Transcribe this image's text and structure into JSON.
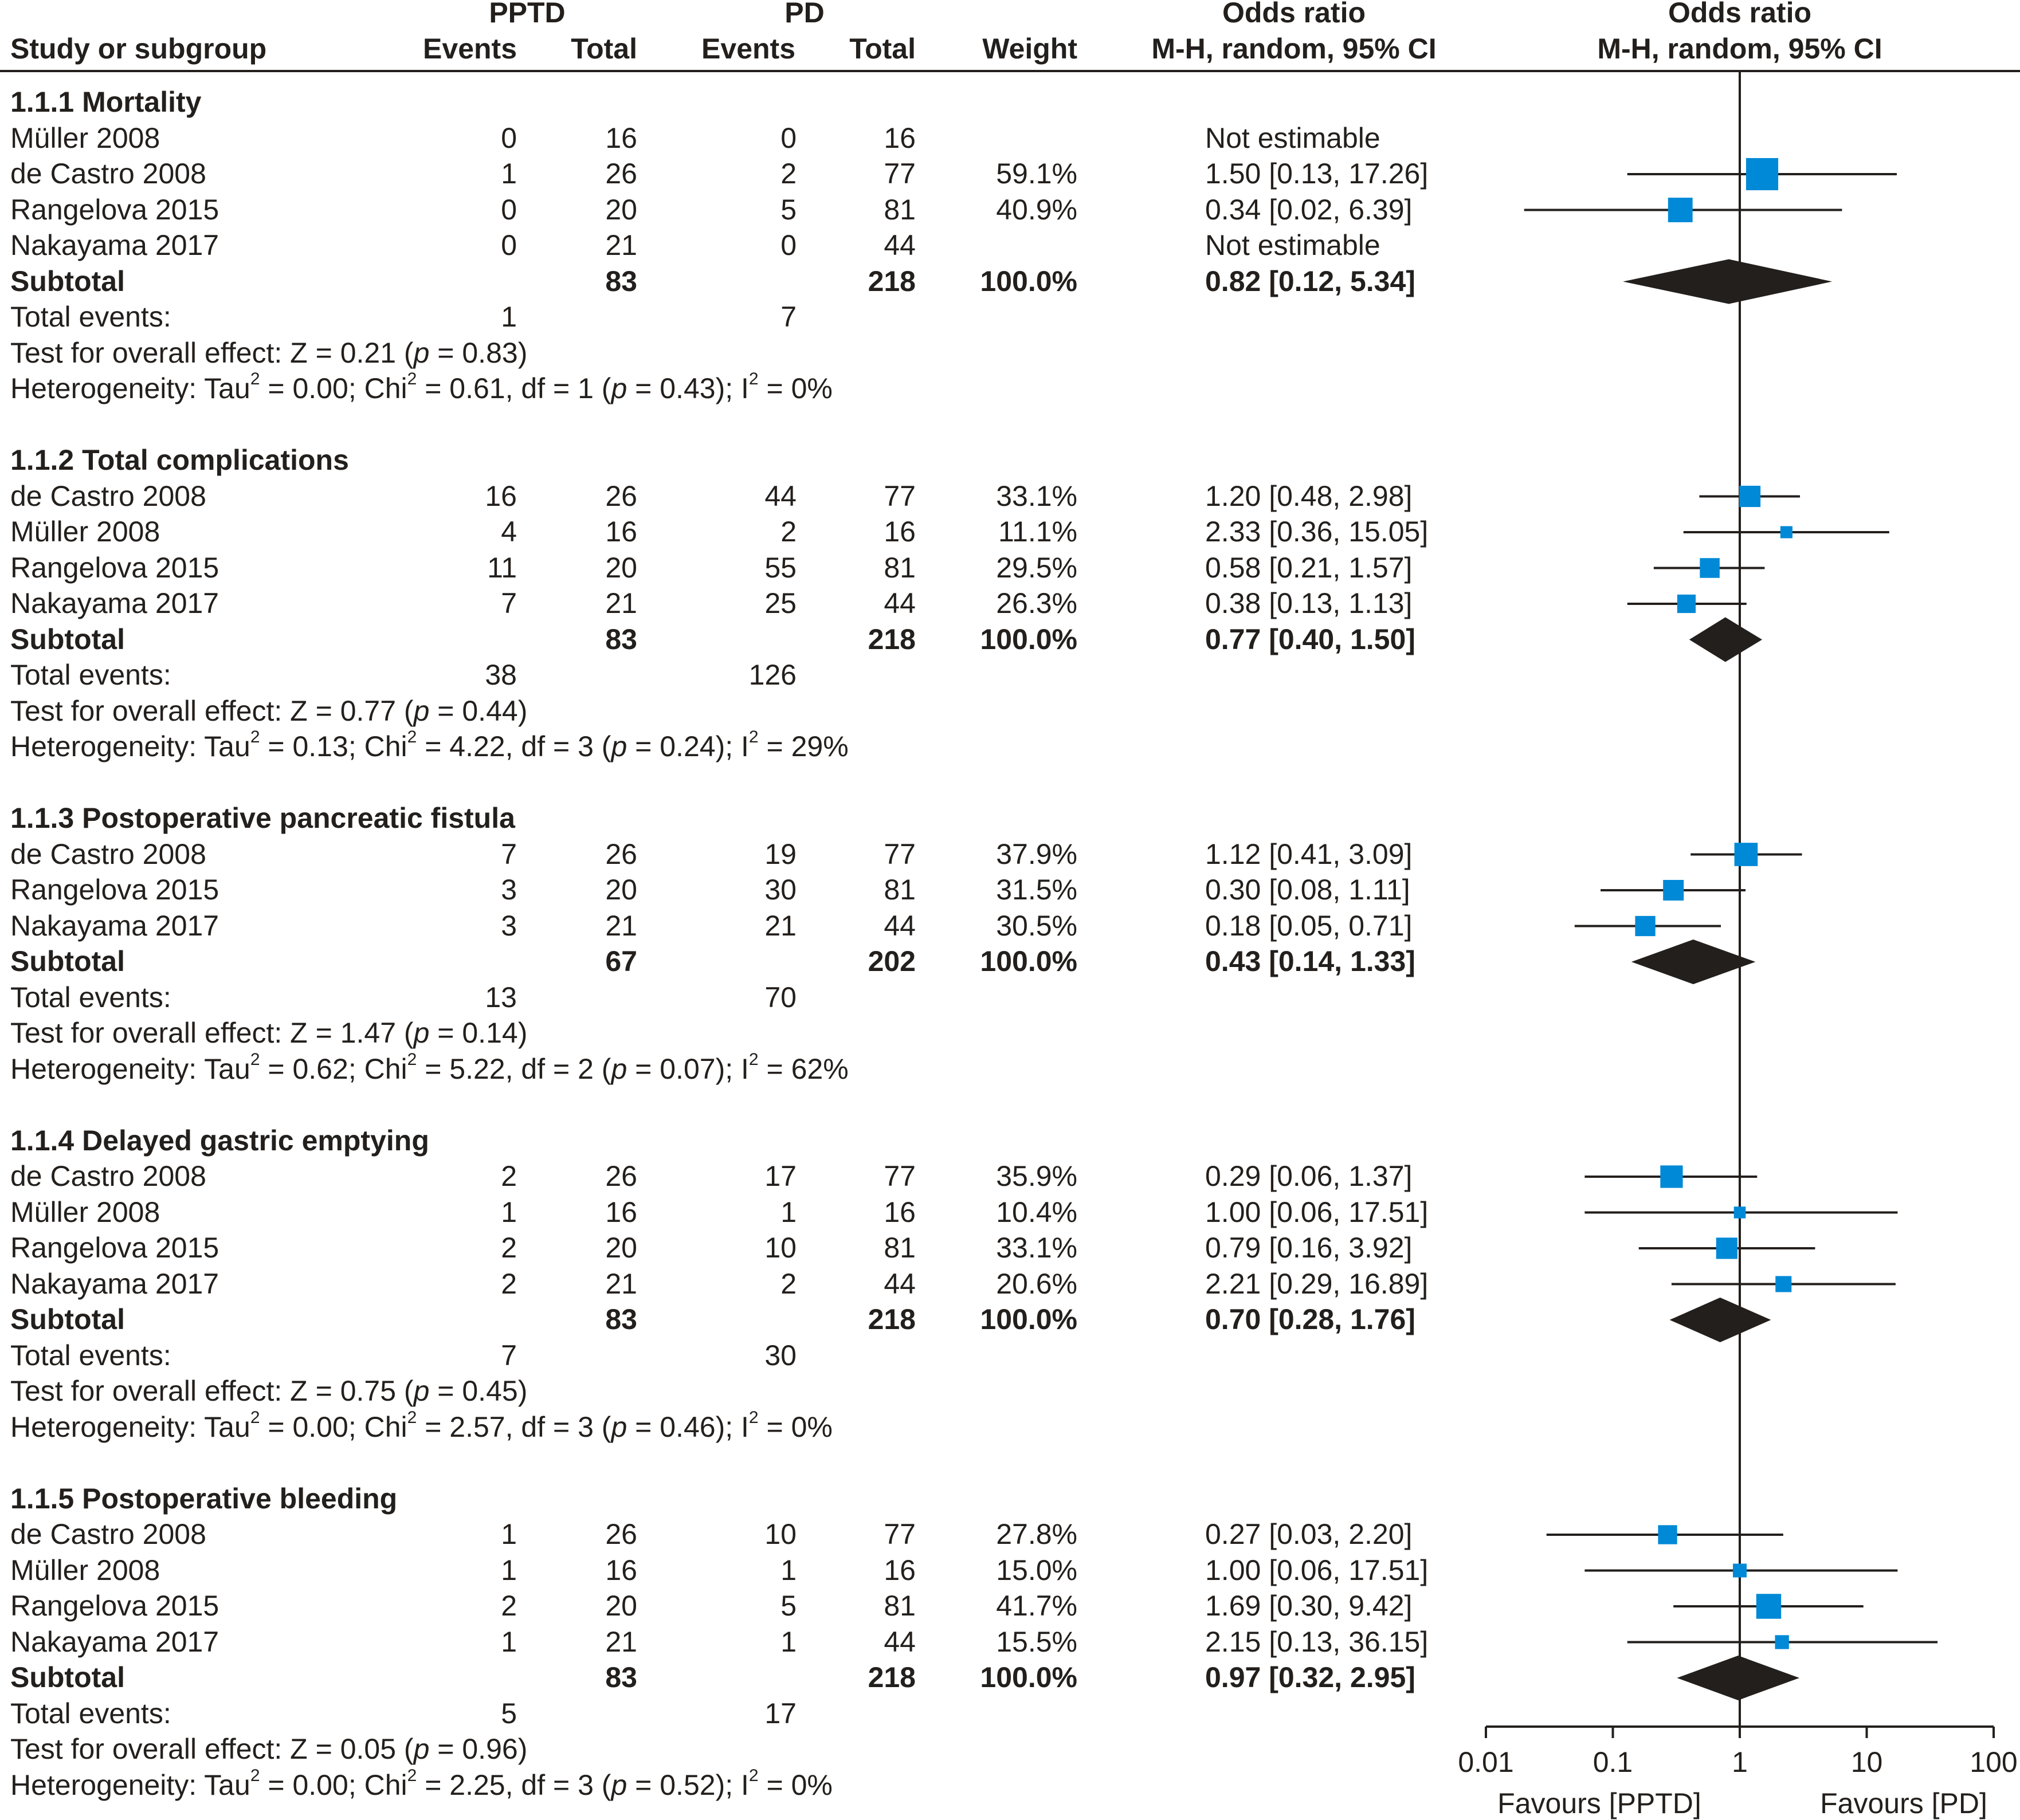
{
  "header": {
    "study_col": "Study or subgroup",
    "group1": "PPTD",
    "group2": "PD",
    "events": "Events",
    "total": "Total",
    "weight": "Weight",
    "or_title": "Odds ratio",
    "or_method": "M-H, random, 95% CI"
  },
  "colors": {
    "box": "#0089d6",
    "ink": "#231f1c"
  },
  "sections": [
    {
      "title": "1.1.1 Mortality",
      "studies": [
        {
          "name": "Müller 2008",
          "e1": "0",
          "n1": "16",
          "e2": "0",
          "n2": "16",
          "weight": "",
          "or_text": "Not estimable"
        },
        {
          "name": "de Castro 2008",
          "e1": "1",
          "n1": "26",
          "e2": "2",
          "n2": "77",
          "weight": "59.1%",
          "or_text": "1.50 [0.13, 17.26]"
        },
        {
          "name": "Rangelova 2015",
          "e1": "0",
          "n1": "20",
          "e2": "5",
          "n2": "81",
          "weight": "40.9%",
          "or_text": "0.34 [0.02, 6.39]"
        },
        {
          "name": "Nakayama 2017",
          "e1": "0",
          "n1": "21",
          "e2": "0",
          "n2": "44",
          "weight": "",
          "or_text": "Not estimable"
        }
      ],
      "subtotal": {
        "label": "Subtotal",
        "n1": "83",
        "n2": "218",
        "weight": "100.0%",
        "or_text": "0.82 [0.12, 5.34]"
      },
      "total_events": {
        "label": "Total events:",
        "e1": "1",
        "e2": "7"
      },
      "test": {
        "prefix": "Test for overall effect: Z = 0.21 (",
        "p": "p",
        "suffix": " = 0.83)"
      },
      "het": {
        "tau2": "0.00",
        "chi2": "0.61",
        "df": "1",
        "p": "0.43",
        "i2": "0%"
      }
    },
    {
      "title": "1.1.2 Total complications",
      "studies": [
        {
          "name": "de Castro 2008",
          "e1": "16",
          "n1": "26",
          "e2": "44",
          "n2": "77",
          "weight": "33.1%",
          "or_text": "1.20 [0.48, 2.98]"
        },
        {
          "name": "Müller 2008",
          "e1": "4",
          "n1": "16",
          "e2": "2",
          "n2": "16",
          "weight": "11.1%",
          "or_text": "2.33 [0.36, 15.05]"
        },
        {
          "name": "Rangelova 2015",
          "e1": "11",
          "n1": "20",
          "e2": "55",
          "n2": "81",
          "weight": "29.5%",
          "or_text": "0.58 [0.21, 1.57]"
        },
        {
          "name": "Nakayama 2017",
          "e1": "7",
          "n1": "21",
          "e2": "25",
          "n2": "44",
          "weight": "26.3%",
          "or_text": "0.38 [0.13, 1.13]"
        }
      ],
      "subtotal": {
        "label": "Subtotal",
        "n1": "83",
        "n2": "218",
        "weight": "100.0%",
        "or_text": "0.77 [0.40, 1.50]"
      },
      "total_events": {
        "label": "Total events:",
        "e1": "38",
        "e2": "126"
      },
      "test": {
        "prefix": "Test for overall effect: Z = 0.77 (",
        "p": "p",
        "suffix": " = 0.44)"
      },
      "het": {
        "tau2": "0.13",
        "chi2": "4.22",
        "df": "3",
        "p": "0.24",
        "i2": "29%"
      }
    },
    {
      "title": "1.1.3 Postoperative pancreatic fistula",
      "studies": [
        {
          "name": "de Castro 2008",
          "e1": "7",
          "n1": "26",
          "e2": "19",
          "n2": "77",
          "weight": "37.9%",
          "or_text": "1.12 [0.41, 3.09]"
        },
        {
          "name": "Rangelova 2015",
          "e1": "3",
          "n1": "20",
          "e2": "30",
          "n2": "81",
          "weight": "31.5%",
          "or_text": "0.30 [0.08, 1.11]"
        },
        {
          "name": "Nakayama 2017",
          "e1": "3",
          "n1": "21",
          "e2": "21",
          "n2": "44",
          "weight": "30.5%",
          "or_text": "0.18 [0.05, 0.71]"
        }
      ],
      "subtotal": {
        "label": "Subtotal",
        "n1": "67",
        "n2": "202",
        "weight": "100.0%",
        "or_text": "0.43 [0.14, 1.33]"
      },
      "total_events": {
        "label": "Total events:",
        "e1": "13",
        "e2": "70"
      },
      "test": {
        "prefix": "Test for overall effect: Z = 1.47 (",
        "p": "p",
        "suffix": " = 0.14)"
      },
      "het": {
        "tau2": "0.62",
        "chi2": "5.22",
        "df": "2",
        "p": "0.07",
        "i2": "62%"
      }
    },
    {
      "title": "1.1.4 Delayed gastric emptying",
      "studies": [
        {
          "name": "de Castro 2008",
          "e1": "2",
          "n1": "26",
          "e2": "17",
          "n2": "77",
          "weight": "35.9%",
          "or_text": "0.29 [0.06, 1.37]"
        },
        {
          "name": "Müller 2008",
          "e1": "1",
          "n1": "16",
          "e2": "1",
          "n2": "16",
          "weight": "10.4%",
          "or_text": "1.00 [0.06, 17.51]"
        },
        {
          "name": "Rangelova 2015",
          "e1": "2",
          "n1": "20",
          "e2": "10",
          "n2": "81",
          "weight": "33.1%",
          "or_text": "0.79 [0.16, 3.92]"
        },
        {
          "name": "Nakayama 2017",
          "e1": "2",
          "n1": "21",
          "e2": "2",
          "n2": "44",
          "weight": "20.6%",
          "or_text": "2.21 [0.29, 16.89]"
        }
      ],
      "subtotal": {
        "label": "Subtotal",
        "n1": "83",
        "n2": "218",
        "weight": "100.0%",
        "or_text": "0.70 [0.28, 1.76]"
      },
      "total_events": {
        "label": "Total events:",
        "e1": "7",
        "e2": "30"
      },
      "test": {
        "prefix": "Test for overall effect: Z = 0.75 (",
        "p": "p",
        "suffix": " = 0.45)"
      },
      "het": {
        "tau2": "0.00",
        "chi2": "2.57",
        "df": "3",
        "p": "0.46",
        "i2": "0%"
      }
    },
    {
      "title": "1.1.5 Postoperative bleeding",
      "studies": [
        {
          "name": "de Castro 2008",
          "e1": "1",
          "n1": "26",
          "e2": "10",
          "n2": "77",
          "weight": "27.8%",
          "or_text": "0.27 [0.03, 2.20]"
        },
        {
          "name": "Müller 2008",
          "e1": "1",
          "n1": "16",
          "e2": "1",
          "n2": "16",
          "weight": "15.0%",
          "or_text": "1.00 [0.06, 17.51]"
        },
        {
          "name": "Rangelova 2015",
          "e1": "2",
          "n1": "20",
          "e2": "5",
          "n2": "81",
          "weight": "41.7%",
          "or_text": "1.69 [0.30, 9.42]"
        },
        {
          "name": "Nakayama 2017",
          "e1": "1",
          "n1": "21",
          "e2": "1",
          "n2": "44",
          "weight": "15.5%",
          "or_text": "2.15 [0.13, 36.15]"
        }
      ],
      "subtotal": {
        "label": "Subtotal",
        "n1": "83",
        "n2": "218",
        "weight": "100.0%",
        "or_text": "0.97 [0.32, 2.95]"
      },
      "total_events": {
        "label": "Total events:",
        "e1": "5",
        "e2": "17"
      },
      "test": {
        "prefix": "Test for overall effect: Z = 0.05 (",
        "p": "p",
        "suffix": " = 0.96)"
      },
      "het": {
        "tau2": "0.00",
        "chi2": "2.25",
        "df": "3",
        "p": "0.52",
        "i2": "0%"
      }
    }
  ],
  "chart_data": {
    "type": "forest",
    "title": "Odds ratio M-H, random, 95% CI",
    "x_scale": "log",
    "xlim": [
      0.01,
      100
    ],
    "x_ticks": [
      "0.01",
      "0.1",
      "1",
      "10",
      "100"
    ],
    "reference_line": 1,
    "xlabel_left": "Favours [PPTD]",
    "xlabel_right": "Favours [PD]",
    "groups": [
      {
        "name": "1.1.1 Mortality",
        "points": [
          {
            "study": "Müller 2008",
            "or": null,
            "lo": null,
            "hi": null,
            "weight": null
          },
          {
            "study": "de Castro 2008",
            "or": 1.5,
            "lo": 0.13,
            "hi": 17.26,
            "weight": 59.1
          },
          {
            "study": "Rangelova 2015",
            "or": 0.34,
            "lo": 0.02,
            "hi": 6.39,
            "weight": 40.9
          },
          {
            "study": "Nakayama 2017",
            "or": null,
            "lo": null,
            "hi": null,
            "weight": null
          }
        ],
        "pooled": {
          "or": 0.82,
          "lo": 0.12,
          "hi": 5.34
        }
      },
      {
        "name": "1.1.2 Total complications",
        "points": [
          {
            "study": "de Castro 2008",
            "or": 1.2,
            "lo": 0.48,
            "hi": 2.98,
            "weight": 33.1
          },
          {
            "study": "Müller 2008",
            "or": 2.33,
            "lo": 0.36,
            "hi": 15.05,
            "weight": 11.1
          },
          {
            "study": "Rangelova 2015",
            "or": 0.58,
            "lo": 0.21,
            "hi": 1.57,
            "weight": 29.5
          },
          {
            "study": "Nakayama 2017",
            "or": 0.38,
            "lo": 0.13,
            "hi": 1.13,
            "weight": 26.3
          }
        ],
        "pooled": {
          "or": 0.77,
          "lo": 0.4,
          "hi": 1.5
        }
      },
      {
        "name": "1.1.3 Postoperative pancreatic fistula",
        "points": [
          {
            "study": "de Castro 2008",
            "or": 1.12,
            "lo": 0.41,
            "hi": 3.09,
            "weight": 37.9
          },
          {
            "study": "Rangelova 2015",
            "or": 0.3,
            "lo": 0.08,
            "hi": 1.11,
            "weight": 31.5
          },
          {
            "study": "Nakayama 2017",
            "or": 0.18,
            "lo": 0.05,
            "hi": 0.71,
            "weight": 30.5
          }
        ],
        "pooled": {
          "or": 0.43,
          "lo": 0.14,
          "hi": 1.33
        }
      },
      {
        "name": "1.1.4 Delayed gastric emptying",
        "points": [
          {
            "study": "de Castro 2008",
            "or": 0.29,
            "lo": 0.06,
            "hi": 1.37,
            "weight": 35.9
          },
          {
            "study": "Müller 2008",
            "or": 1.0,
            "lo": 0.06,
            "hi": 17.51,
            "weight": 10.4
          },
          {
            "study": "Rangelova 2015",
            "or": 0.79,
            "lo": 0.16,
            "hi": 3.92,
            "weight": 33.1
          },
          {
            "study": "Nakayama 2017",
            "or": 2.21,
            "lo": 0.29,
            "hi": 16.89,
            "weight": 20.6
          }
        ],
        "pooled": {
          "or": 0.7,
          "lo": 0.28,
          "hi": 1.76
        }
      },
      {
        "name": "1.1.5 Postoperative bleeding",
        "points": [
          {
            "study": "de Castro 2008",
            "or": 0.27,
            "lo": 0.03,
            "hi": 2.2,
            "weight": 27.8
          },
          {
            "study": "Müller 2008",
            "or": 1.0,
            "lo": 0.06,
            "hi": 17.51,
            "weight": 15.0
          },
          {
            "study": "Rangelova 2015",
            "or": 1.69,
            "lo": 0.3,
            "hi": 9.42,
            "weight": 41.7
          },
          {
            "study": "Nakayama 2017",
            "or": 2.15,
            "lo": 0.13,
            "hi": 36.15,
            "weight": 15.5
          }
        ],
        "pooled": {
          "or": 0.97,
          "lo": 0.32,
          "hi": 2.95
        }
      }
    ]
  }
}
